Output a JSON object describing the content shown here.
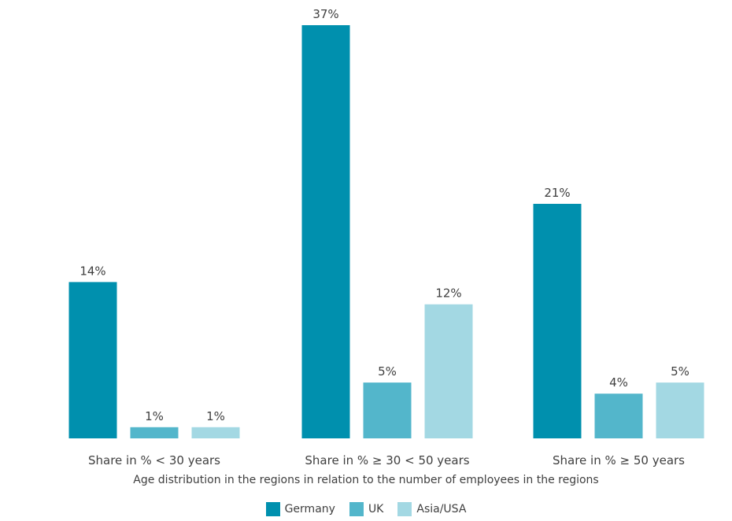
{
  "chart_data": {
    "type": "bar",
    "title": "",
    "xlabel": "Age distribution in the regions in relation to the number of employees in the regions",
    "ylabel": "",
    "ylim": [
      0,
      37
    ],
    "grid": false,
    "legend": "bottom-center",
    "categories": [
      "Share in % < 30 years",
      "Share in % ≥ 30 < 50 years",
      "Share in % ≥ 50 years"
    ],
    "series": [
      {
        "name": "Germany",
        "color": "#0090AE",
        "values": [
          14,
          37,
          21
        ],
        "labels": [
          "14%",
          "37%",
          "21%"
        ]
      },
      {
        "name": "UK",
        "color": "#53B6CB",
        "values": [
          1,
          5,
          4
        ],
        "labels": [
          "1%",
          "5%",
          "4%"
        ]
      },
      {
        "name": "Asia/USA",
        "color": "#A3D8E3",
        "values": [
          1,
          12,
          5
        ],
        "labels": [
          "1%",
          "12%",
          "5%"
        ]
      }
    ]
  }
}
